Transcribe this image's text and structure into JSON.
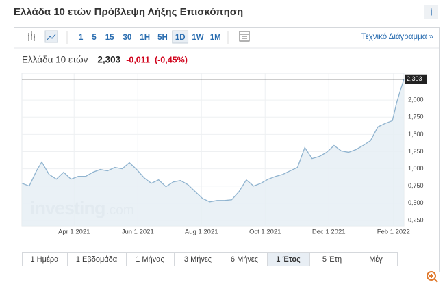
{
  "header": {
    "title": "Ελλάδα 10 ετών Πρόβλεψη Λήξης Επισκόπηση",
    "info": "i"
  },
  "toolbar": {
    "intervals": [
      "1",
      "5",
      "15",
      "30",
      "1H",
      "5H",
      "1D",
      "1W",
      "1M"
    ],
    "active": "1D",
    "link": "Τεχνικό Διάγραμμα »"
  },
  "quote": {
    "name": "Ελλάδα 10 ετών",
    "price": "2,303",
    "change": "-0,011",
    "change_pct": "(-0,45%)"
  },
  "watermark": {
    "brand": "investing",
    ".com": ".com"
  },
  "ranges": {
    "buttons": [
      "1 Ημέρα",
      "1 Εβδομάδα",
      "1 Μήνας",
      "3 Μήνες",
      "6 Μήνες",
      "1 Έτος",
      "5 Έτη",
      "Μέγ"
    ],
    "active": "1 Έτος"
  },
  "chart_data": {
    "type": "area",
    "color": "#8fb3cf",
    "fill": "#e6eef5",
    "x": [
      "2021-02-10",
      "2021-02-17",
      "2021-02-24",
      "2021-03-01",
      "2021-03-08",
      "2021-03-15",
      "2021-03-22",
      "2021-03-29",
      "2021-04-05",
      "2021-04-12",
      "2021-04-19",
      "2021-04-26",
      "2021-05-03",
      "2021-05-10",
      "2021-05-17",
      "2021-05-24",
      "2021-05-31",
      "2021-06-07",
      "2021-06-14",
      "2021-06-21",
      "2021-06-28",
      "2021-07-05",
      "2021-07-12",
      "2021-07-19",
      "2021-07-26",
      "2021-08-02",
      "2021-08-09",
      "2021-08-16",
      "2021-08-23",
      "2021-08-30",
      "2021-09-06",
      "2021-09-13",
      "2021-09-20",
      "2021-09-27",
      "2021-10-04",
      "2021-10-11",
      "2021-10-18",
      "2021-10-25",
      "2021-11-01",
      "2021-11-08",
      "2021-11-15",
      "2021-11-22",
      "2021-11-29",
      "2021-12-06",
      "2021-12-13",
      "2021-12-20",
      "2021-12-27",
      "2022-01-03",
      "2022-01-10",
      "2022-01-17",
      "2022-01-24",
      "2022-01-31",
      "2022-02-04",
      "2022-02-08",
      "2022-02-11"
    ],
    "values": [
      0.79,
      0.75,
      0.97,
      1.1,
      0.92,
      0.85,
      0.95,
      0.85,
      0.89,
      0.89,
      0.95,
      0.99,
      0.97,
      1.02,
      1.0,
      1.09,
      0.99,
      0.87,
      0.79,
      0.84,
      0.74,
      0.81,
      0.83,
      0.77,
      0.67,
      0.57,
      0.52,
      0.54,
      0.54,
      0.55,
      0.67,
      0.84,
      0.75,
      0.79,
      0.85,
      0.89,
      0.92,
      0.97,
      1.02,
      1.31,
      1.15,
      1.18,
      1.24,
      1.34,
      1.26,
      1.24,
      1.28,
      1.34,
      1.41,
      1.61,
      1.66,
      1.7,
      1.96,
      2.16,
      2.303
    ],
    "last_value": {
      "value": 2.303,
      "label": "2,303"
    },
    "xlim": [
      "2021-02-10",
      "2022-02-11"
    ],
    "xticks": [
      {
        "value": "2021-04-01",
        "label": "Apr 1 2021"
      },
      {
        "value": "2021-06-01",
        "label": "Jun 1 2021"
      },
      {
        "value": "2021-08-01",
        "label": "Aug 1 2021"
      },
      {
        "value": "2021-10-01",
        "label": "Oct 1 2021"
      },
      {
        "value": "2021-12-01",
        "label": "Dec 1 2021"
      },
      {
        "value": "2022-02-01",
        "label": "Feb 1 2022"
      }
    ],
    "ylim": [
      0.17,
      2.39
    ],
    "yticks": [
      {
        "value": 0.25,
        "label": "0,250"
      },
      {
        "value": 0.5,
        "label": "0,500"
      },
      {
        "value": 0.75,
        "label": "0,750"
      },
      {
        "value": 1,
        "label": "1,000"
      },
      {
        "value": 1.25,
        "label": "1,250"
      },
      {
        "value": 1.5,
        "label": "1,500"
      },
      {
        "value": 1.75,
        "label": "1,750"
      },
      {
        "value": 2,
        "label": "2,000"
      }
    ],
    "grid": true
  }
}
